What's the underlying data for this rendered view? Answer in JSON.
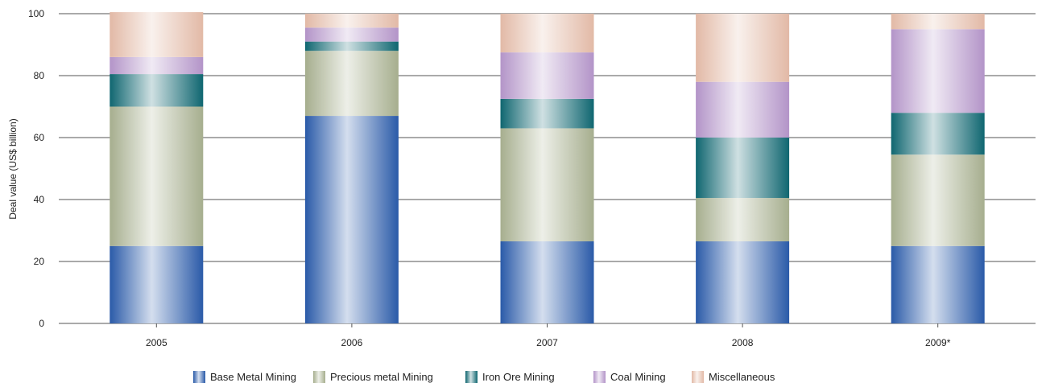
{
  "chart_data": {
    "type": "bar",
    "stacked": true,
    "categories": [
      "2005",
      "2006",
      "2007",
      "2008",
      "2009*"
    ],
    "series": [
      {
        "name": "Base Metal Mining",
        "color": "#2a5aa8",
        "values": [
          25,
          67,
          26.5,
          26.5,
          25
        ]
      },
      {
        "name": "Precious metal Mining",
        "color": "#a6ae8e",
        "values": [
          45,
          21,
          36.5,
          14,
          29.5
        ]
      },
      {
        "name": "Iron Ore Mining",
        "color": "#0f6670",
        "values": [
          10.5,
          3,
          9.5,
          19.5,
          13.5
        ]
      },
      {
        "name": "Coal Mining",
        "color": "#b394c8",
        "values": [
          5.5,
          4.5,
          15,
          18,
          27
        ]
      },
      {
        "name": "Miscellaneous",
        "color": "#e2b9a6",
        "values": [
          14.5,
          4.5,
          12.5,
          22,
          5
        ]
      }
    ],
    "xlabel": "",
    "ylabel": "Deal value (US$ billion)",
    "ylim": [
      0,
      100
    ],
    "yticks": [
      "0",
      "20",
      "40",
      "60",
      "80",
      "100"
    ],
    "grid": true,
    "legend_position": "bottom"
  }
}
